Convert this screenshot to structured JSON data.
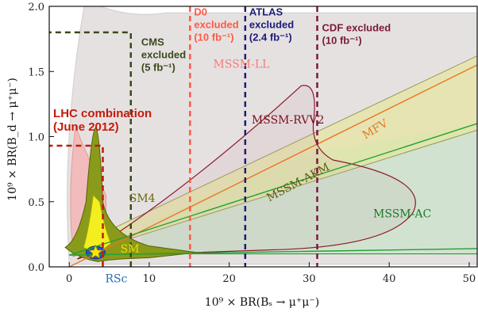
{
  "chart_data": {
    "type": "scatter",
    "title": "",
    "xlabel": "10⁹ × BR(Bₛ → μ⁺μ⁻)",
    "ylabel": "10⁹ × BR(B_d → μ⁺μ⁻)",
    "xlim": [
      -2.5,
      51
    ],
    "ylim": [
      0,
      2.0
    ],
    "x_ticks": [
      "0",
      "10",
      "20",
      "30",
      "40",
      "50"
    ],
    "y_ticks": [
      "0.0",
      "0.5",
      "1.0",
      "1.5",
      "2.0"
    ],
    "exclusion_limits": [
      {
        "name": "D0",
        "x": 15.1,
        "label_lines": [
          "D0",
          "excluded",
          "(10 fb⁻¹)"
        ],
        "color": "#ff5a46"
      },
      {
        "name": "ATLAS",
        "x": 22.0,
        "label_lines": [
          "ATLAS",
          "excluded",
          "(2.4 fb⁻¹)"
        ],
        "color": "#1c1c7a"
      },
      {
        "name": "CDF",
        "x": 31.0,
        "label_lines": [
          "CDF excluded",
          "(10 fb⁻¹)"
        ],
        "color": "#7a1a3c"
      },
      {
        "name": "CMS",
        "x": 7.7,
        "y": 1.8,
        "label_lines": [
          "CMS",
          "excluded",
          "(5 fb⁻¹)"
        ],
        "color": "#3a4a1a"
      },
      {
        "name": "LHC combination",
        "x": 4.2,
        "y": 0.93,
        "label_lines": [
          "LHC combination",
          "(June 2012)"
        ],
        "color": "#c41a0a"
      }
    ],
    "model_labels": [
      {
        "text": "MSSM-LL",
        "x": 18,
        "y": 1.53,
        "color": "#f47c7c"
      },
      {
        "text": "MSSM-RVV2",
        "x": 22.8,
        "y": 1.1,
        "color": "#7a1020"
      },
      {
        "text": "SM4",
        "x": 7.5,
        "y": 0.5,
        "color": "#6a6a10"
      },
      {
        "text": "MFV",
        "x": 37,
        "y": 0.98,
        "color": "#e07a20"
      },
      {
        "text": "MSSM-AKM",
        "x": 25,
        "y": 0.5,
        "color": "#5a5a10"
      },
      {
        "text": "MSSM-AC",
        "x": 38,
        "y": 0.38,
        "color": "#1a7a2a"
      },
      {
        "text": "SM",
        "x": 6.4,
        "y": 0.11,
        "color": "#e8e000"
      },
      {
        "text": "RSc",
        "x": 4.5,
        "y": -0.12,
        "color": "#2a6fb0"
      }
    ],
    "series": [
      {
        "name": "MFV",
        "x": [
          0,
          51
        ],
        "y": [
          0,
          1.55
        ],
        "color": "#e87722"
      },
      {
        "name": "MSSM-AC",
        "x": [
          0,
          51
        ],
        "y": [
          0.09,
          1.1
        ],
        "color": "#22a030"
      },
      {
        "name": "MSSM-AC",
        "x": [
          0,
          51
        ],
        "y": [
          0.09,
          0.14
        ],
        "color": "#22a030"
      }
    ],
    "sm_point": {
      "x": 3.3,
      "y": 0.11
    },
    "grid": false,
    "legend": "none"
  }
}
